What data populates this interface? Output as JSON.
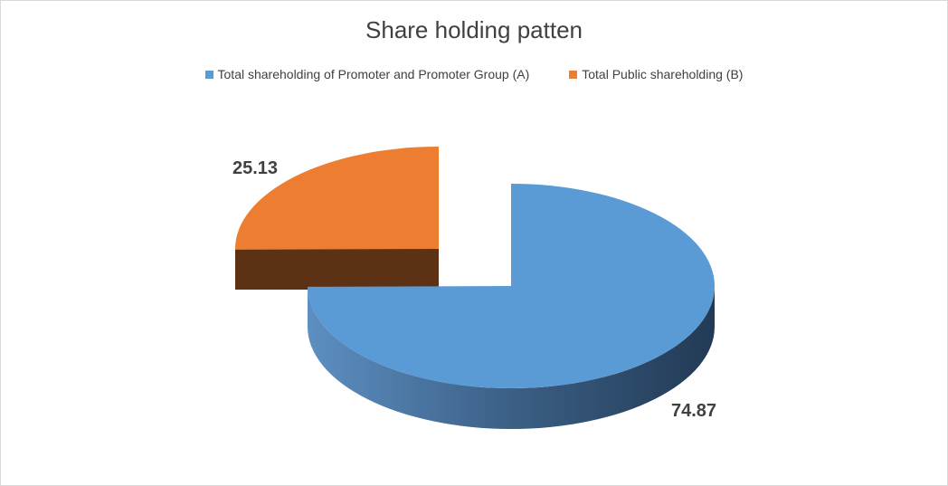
{
  "chart_data": {
    "type": "pie",
    "title": "Share holding patten",
    "categories": [
      "Total shareholding of Promoter and Promoter Group (A)",
      "Total Public shareholding (B)"
    ],
    "values": [
      74.87,
      25.13
    ],
    "data_labels": [
      "74.87",
      "25.13"
    ],
    "colors": [
      "#5B9BD5",
      "#ED7D31"
    ],
    "legend_position": "top",
    "style": "3d-exploded"
  }
}
